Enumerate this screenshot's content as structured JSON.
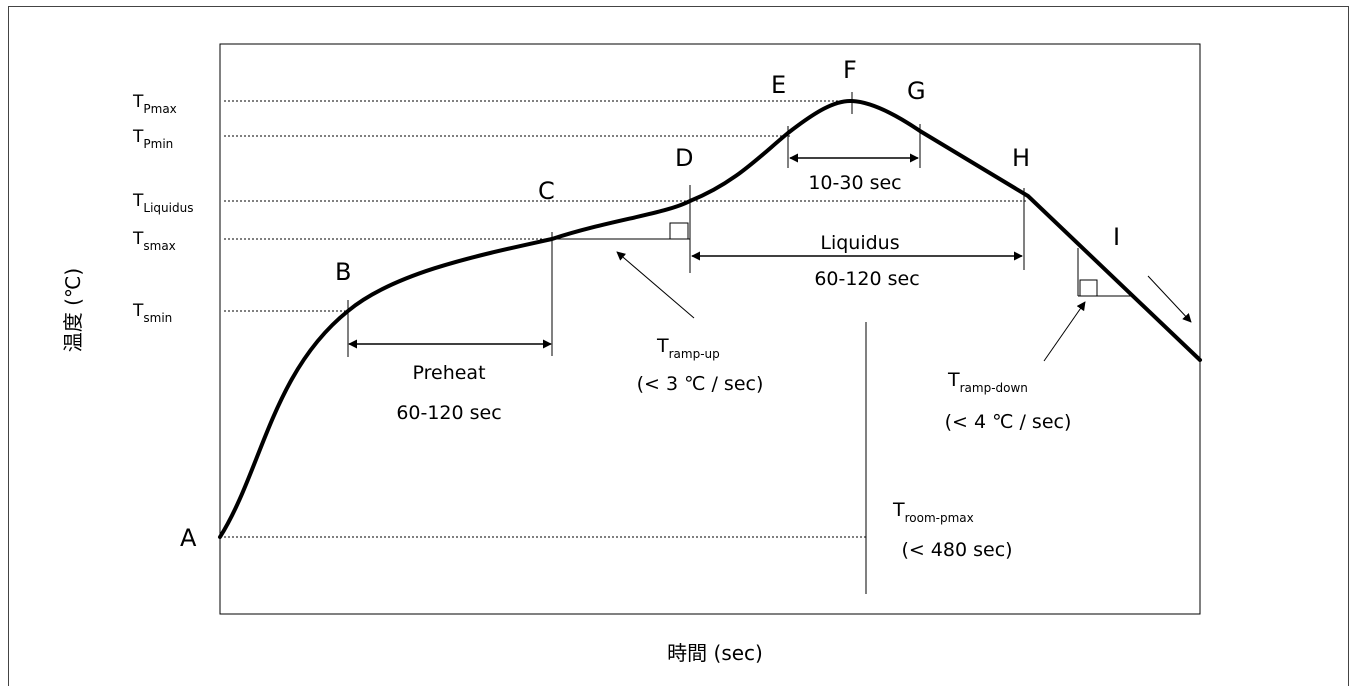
{
  "axes": {
    "x_label": "時間 (sec)",
    "y_label": "温度 (℃)"
  },
  "y_ticks": [
    {
      "main": "T",
      "sub": "Pmax"
    },
    {
      "main": "T",
      "sub": "Pmin"
    },
    {
      "main": "T",
      "sub": "Liquidus"
    },
    {
      "main": "T",
      "sub": "smax"
    },
    {
      "main": "T",
      "sub": "smin"
    }
  ],
  "points": [
    "A",
    "B",
    "C",
    "D",
    "E",
    "F",
    "G",
    "H",
    "I"
  ],
  "intervals": {
    "preheat": {
      "name": "Preheat",
      "duration": "60-120 sec"
    },
    "liquidus": {
      "name": "Liquidus",
      "duration": "60-120 sec"
    },
    "peak": {
      "duration": "10-30 sec"
    }
  },
  "rates": {
    "ramp_up": {
      "main": "T",
      "sub": "ramp-up",
      "limit": "(< 3 ℃ / sec)"
    },
    "ramp_down": {
      "main": "T",
      "sub": "ramp-down",
      "limit": "(< 4 ℃ / sec)"
    },
    "room_to_peak": {
      "main": "T",
      "sub": "room-pmax",
      "limit": "(< 480 sec)"
    }
  },
  "colors": {
    "curve": "#000000",
    "guide": "#000000",
    "background": "#ffffff"
  }
}
